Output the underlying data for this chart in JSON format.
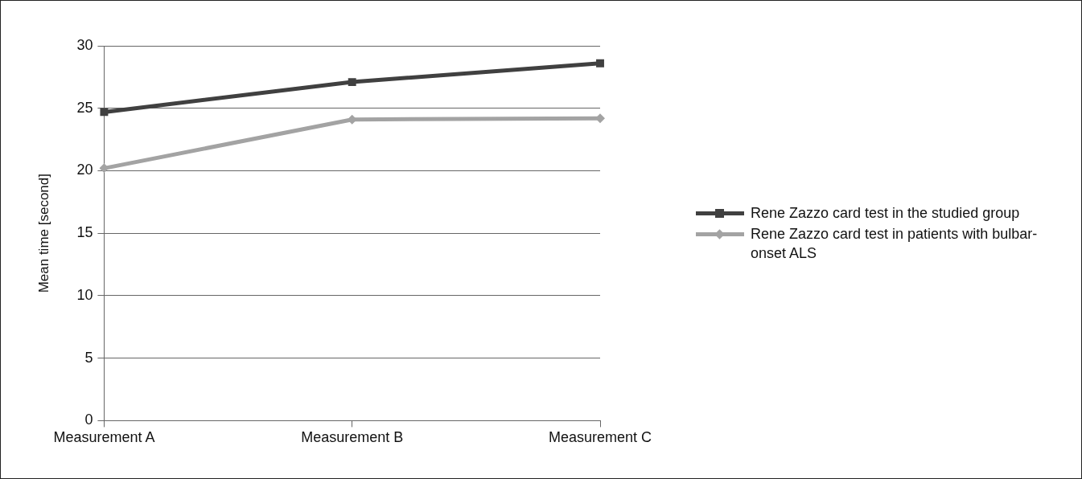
{
  "chart_data": {
    "type": "line",
    "ylabel": "Mean time [second]",
    "categories": [
      "Measurement A",
      "Measurement B",
      "Measurement C"
    ],
    "series": [
      {
        "name": "Rene Zazzo card test in the studied group",
        "color": "#404040",
        "marker": "square",
        "values": [
          24.7,
          27.1,
          28.6
        ]
      },
      {
        "name": "Rene Zazzo card test in patients with bulbar-onset ALS",
        "color": "#a3a3a3",
        "marker": "diamond",
        "values": [
          20.2,
          24.1,
          24.2
        ]
      }
    ],
    "ylim": [
      0,
      30
    ],
    "yticks": [
      0,
      5,
      10,
      15,
      20,
      25,
      30
    ],
    "grid": "y",
    "legend": "right",
    "line_style": "solid"
  }
}
